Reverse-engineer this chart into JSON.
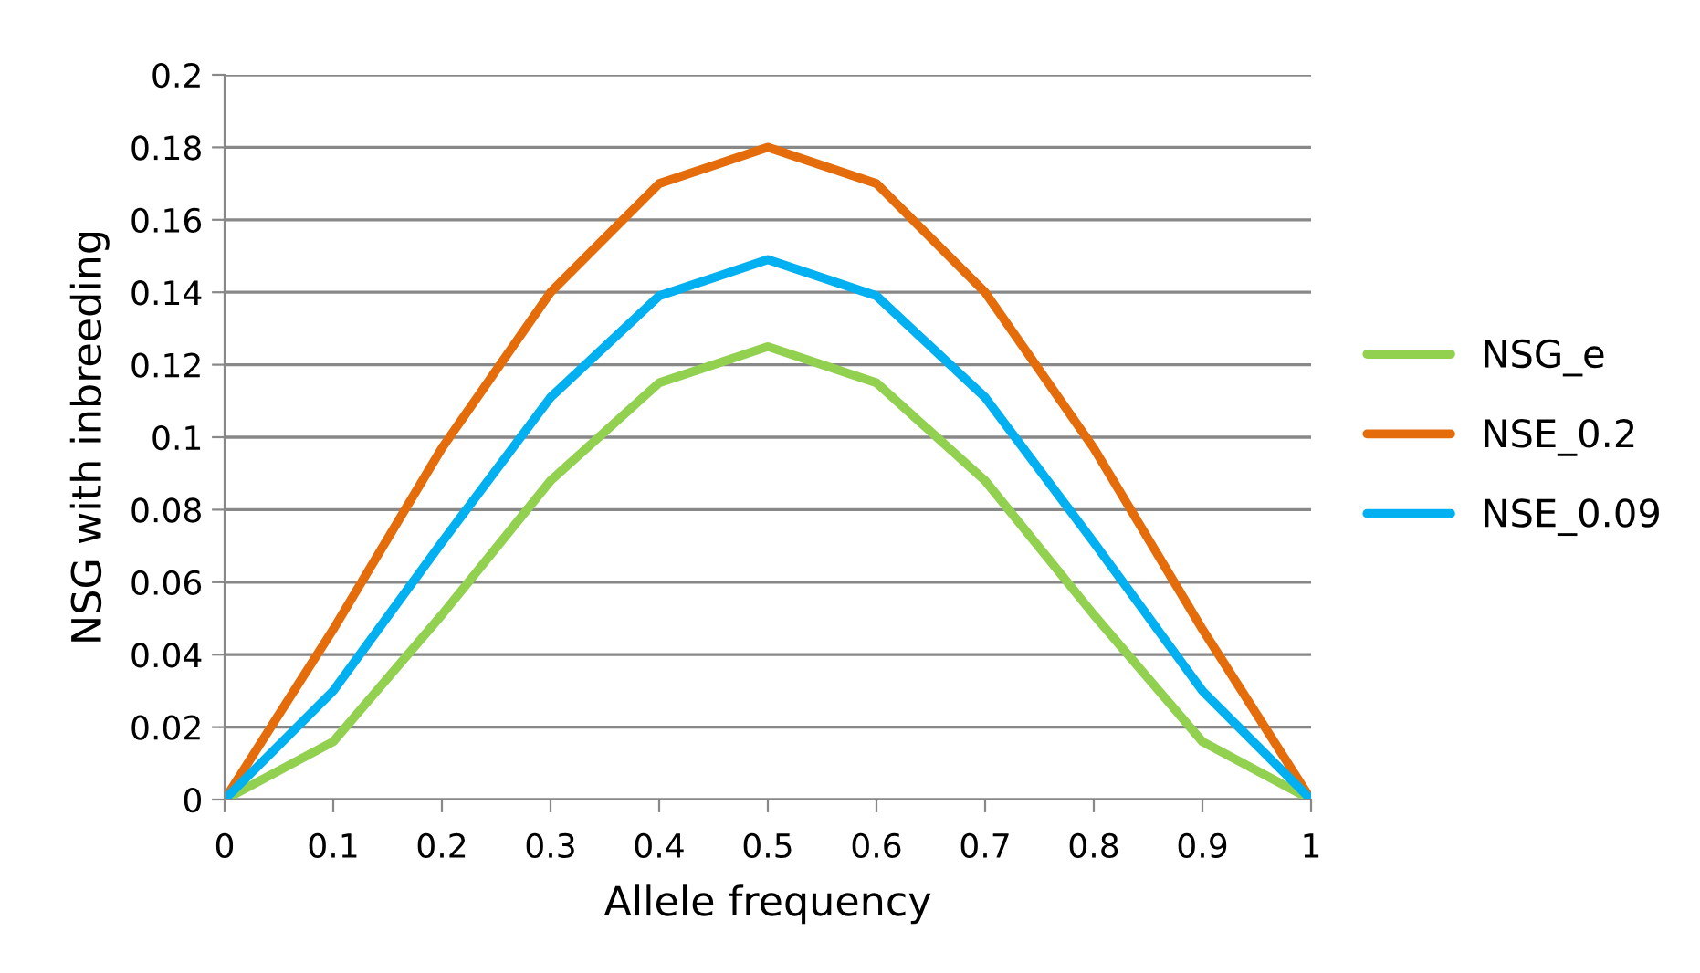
{
  "chart_data": {
    "type": "line",
    "xlabel": "Allele frequency",
    "ylabel": "NSG with inbreeding",
    "x": [
      0,
      0.1,
      0.2,
      0.3,
      0.4,
      0.5,
      0.6,
      0.7,
      0.8,
      0.9,
      1
    ],
    "series": [
      {
        "name": "NSG_e",
        "color": "#92d050",
        "values": [
          0,
          0.016,
          0.051,
          0.088,
          0.115,
          0.125,
          0.115,
          0.088,
          0.051,
          0.016,
          0
        ]
      },
      {
        "name": "NSE_0.2",
        "color": "#e46c0a",
        "values": [
          0,
          0.047,
          0.097,
          0.14,
          0.17,
          0.18,
          0.17,
          0.14,
          0.097,
          0.047,
          0
        ]
      },
      {
        "name": "NSE_0.09",
        "color": "#00b0f0",
        "values": [
          0,
          0.03,
          0.071,
          0.111,
          0.139,
          0.149,
          0.139,
          0.111,
          0.071,
          0.03,
          0
        ]
      }
    ],
    "xlim": [
      0,
      1
    ],
    "xticks": [
      0,
      0.1,
      0.2,
      0.3,
      0.4,
      0.5,
      0.6,
      0.7,
      0.8,
      0.9,
      1
    ],
    "ylim": [
      0,
      0.2
    ],
    "yticks": [
      0,
      0.02,
      0.04,
      0.06,
      0.08,
      0.1,
      0.12,
      0.14,
      0.16,
      0.18,
      0.2
    ],
    "grid": "y",
    "legend": "right",
    "marker": "none",
    "line_style": "solid"
  }
}
